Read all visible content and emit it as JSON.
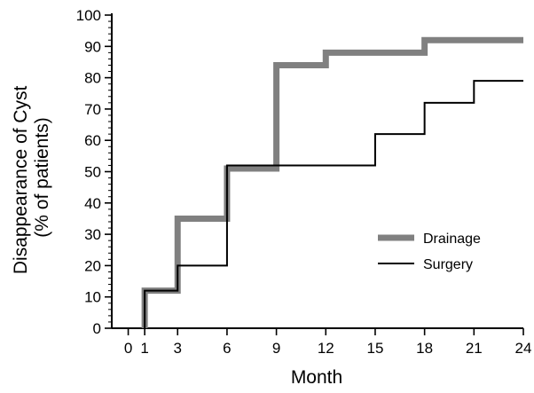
{
  "chart_data": {
    "type": "line",
    "step": true,
    "xlabel": "Month",
    "ylabel_lines": [
      "Disappearance of Cyst",
      "(% of patients)"
    ],
    "xlim": [
      -1,
      24
    ],
    "ylim": [
      0,
      100
    ],
    "x_ticks": [
      0,
      1,
      3,
      6,
      9,
      12,
      15,
      18,
      21,
      24
    ],
    "y_ticks": [
      0,
      10,
      20,
      30,
      40,
      50,
      60,
      70,
      80,
      90,
      100
    ],
    "grid": false,
    "legend_position": "lower-right",
    "series": [
      {
        "name": "Drainage",
        "color": "#808080",
        "style": "thick",
        "x": [
          1,
          3,
          6,
          9,
          12,
          18,
          24
        ],
        "y": [
          12,
          35,
          51,
          84,
          88,
          92,
          92
        ]
      },
      {
        "name": "Surgery",
        "color": "#000000",
        "style": "thin",
        "x": [
          1,
          3,
          6,
          9,
          15,
          18,
          21,
          24
        ],
        "y": [
          12,
          20,
          52,
          52,
          62,
          72,
          79,
          79
        ]
      }
    ]
  }
}
